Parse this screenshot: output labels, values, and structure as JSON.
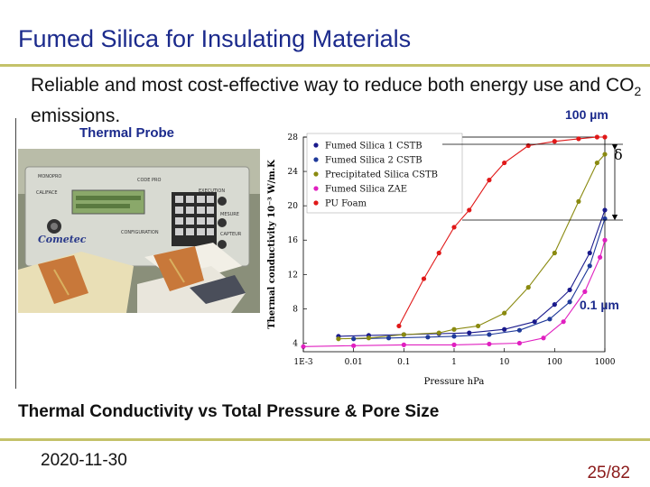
{
  "slide": {
    "title": "Fumed Silica for Insulating Materials",
    "subtitle_pre": "Reliable and most cost-effective way to reduce both energy use and CO",
    "subtitle_sub": "2",
    "subtitle_post": " emissions.",
    "caption": "Thermal Conductivity vs Total Pressure & Pore Size",
    "date": "2020-11-30",
    "page": "25/82"
  },
  "photo": {
    "label": "Thermal Probe",
    "panel_labels": [
      "CALIFACE",
      "CODE PRO",
      "MONOPRO",
      "CONFIGURATION",
      "EXECUTION",
      "MESURE",
      "CAPTEUR"
    ],
    "brand": "Cometec"
  },
  "chart_data": {
    "type": "scatter",
    "title": "",
    "xlabel": "Pressure hPa",
    "ylabel": "Thermal conductivity 10⁻³ W/m.K",
    "x_scale": "log",
    "xlim": [
      0.001,
      1000
    ],
    "ylim": [
      3,
      28
    ],
    "x_ticks": [
      0.001,
      0.01,
      0.1,
      1,
      10,
      100,
      1000
    ],
    "x_tick_labels": [
      "1E-3",
      "0.01",
      "0.1",
      "1",
      "10",
      "100",
      "1000"
    ],
    "y_ticks": [
      4,
      8,
      12,
      16,
      20,
      24,
      28
    ],
    "y_tick_labels": [
      "4",
      "8",
      "12",
      "16",
      "20",
      "24",
      "28"
    ],
    "annotations": {
      "top": "100 µm",
      "bottom": "0.1 µm",
      "delta": "δ"
    },
    "colors": {
      "blue": "#1a1a8c",
      "navy": "#1f3a9a",
      "olive": "#8a8a10",
      "magenta": "#e020c0",
      "red": "#e01818",
      "accent": "#1b2a8c",
      "rule": "#c4c26a"
    },
    "series": [
      {
        "name": "Fumed Silica 1 CSTB",
        "color": "#1a1a8c",
        "marker": "circle",
        "x": [
          0.005,
          0.02,
          0.1,
          0.5,
          2,
          10,
          40,
          100,
          200,
          500,
          1000
        ],
        "y": [
          4.8,
          4.9,
          5.0,
          5.1,
          5.2,
          5.6,
          6.5,
          8.5,
          10.2,
          14.5,
          19.5
        ]
      },
      {
        "name": "Fumed Silica 2 CSTB",
        "color": "#1f3a9a",
        "marker": "circle",
        "x": [
          0.01,
          0.05,
          0.3,
          1,
          5,
          20,
          80,
          200,
          500,
          1000
        ],
        "y": [
          4.5,
          4.6,
          4.7,
          4.8,
          5.0,
          5.5,
          6.8,
          8.8,
          13,
          18.5
        ]
      },
      {
        "name": "Precipitated Silica CSTB",
        "color": "#8a8a10",
        "marker": "circle",
        "x": [
          0.005,
          0.02,
          0.1,
          0.5,
          1,
          3,
          10,
          30,
          100,
          300,
          700,
          1000
        ],
        "y": [
          4.5,
          4.6,
          5.0,
          5.2,
          5.6,
          6.0,
          7.5,
          10.5,
          14.5,
          20.5,
          25.0,
          26.0
        ]
      },
      {
        "name": "Fumed Silica ZAE",
        "color": "#e020c0",
        "marker": "circle",
        "x": [
          0.001,
          0.01,
          0.1,
          1,
          5,
          20,
          60,
          150,
          400,
          800,
          1000
        ],
        "y": [
          3.6,
          3.7,
          3.8,
          3.8,
          3.9,
          4.0,
          4.6,
          6.5,
          10.0,
          14.0,
          16.0
        ]
      },
      {
        "name": "PU Foam",
        "color": "#e01818",
        "marker": "circle",
        "x": [
          0.08,
          0.25,
          0.5,
          1,
          2,
          5,
          10,
          30,
          100,
          300,
          700,
          1000
        ],
        "y": [
          6.0,
          11.5,
          14.5,
          17.5,
          19.5,
          23.0,
          25.0,
          27.0,
          27.5,
          27.8,
          28.0,
          28.0
        ]
      }
    ]
  }
}
